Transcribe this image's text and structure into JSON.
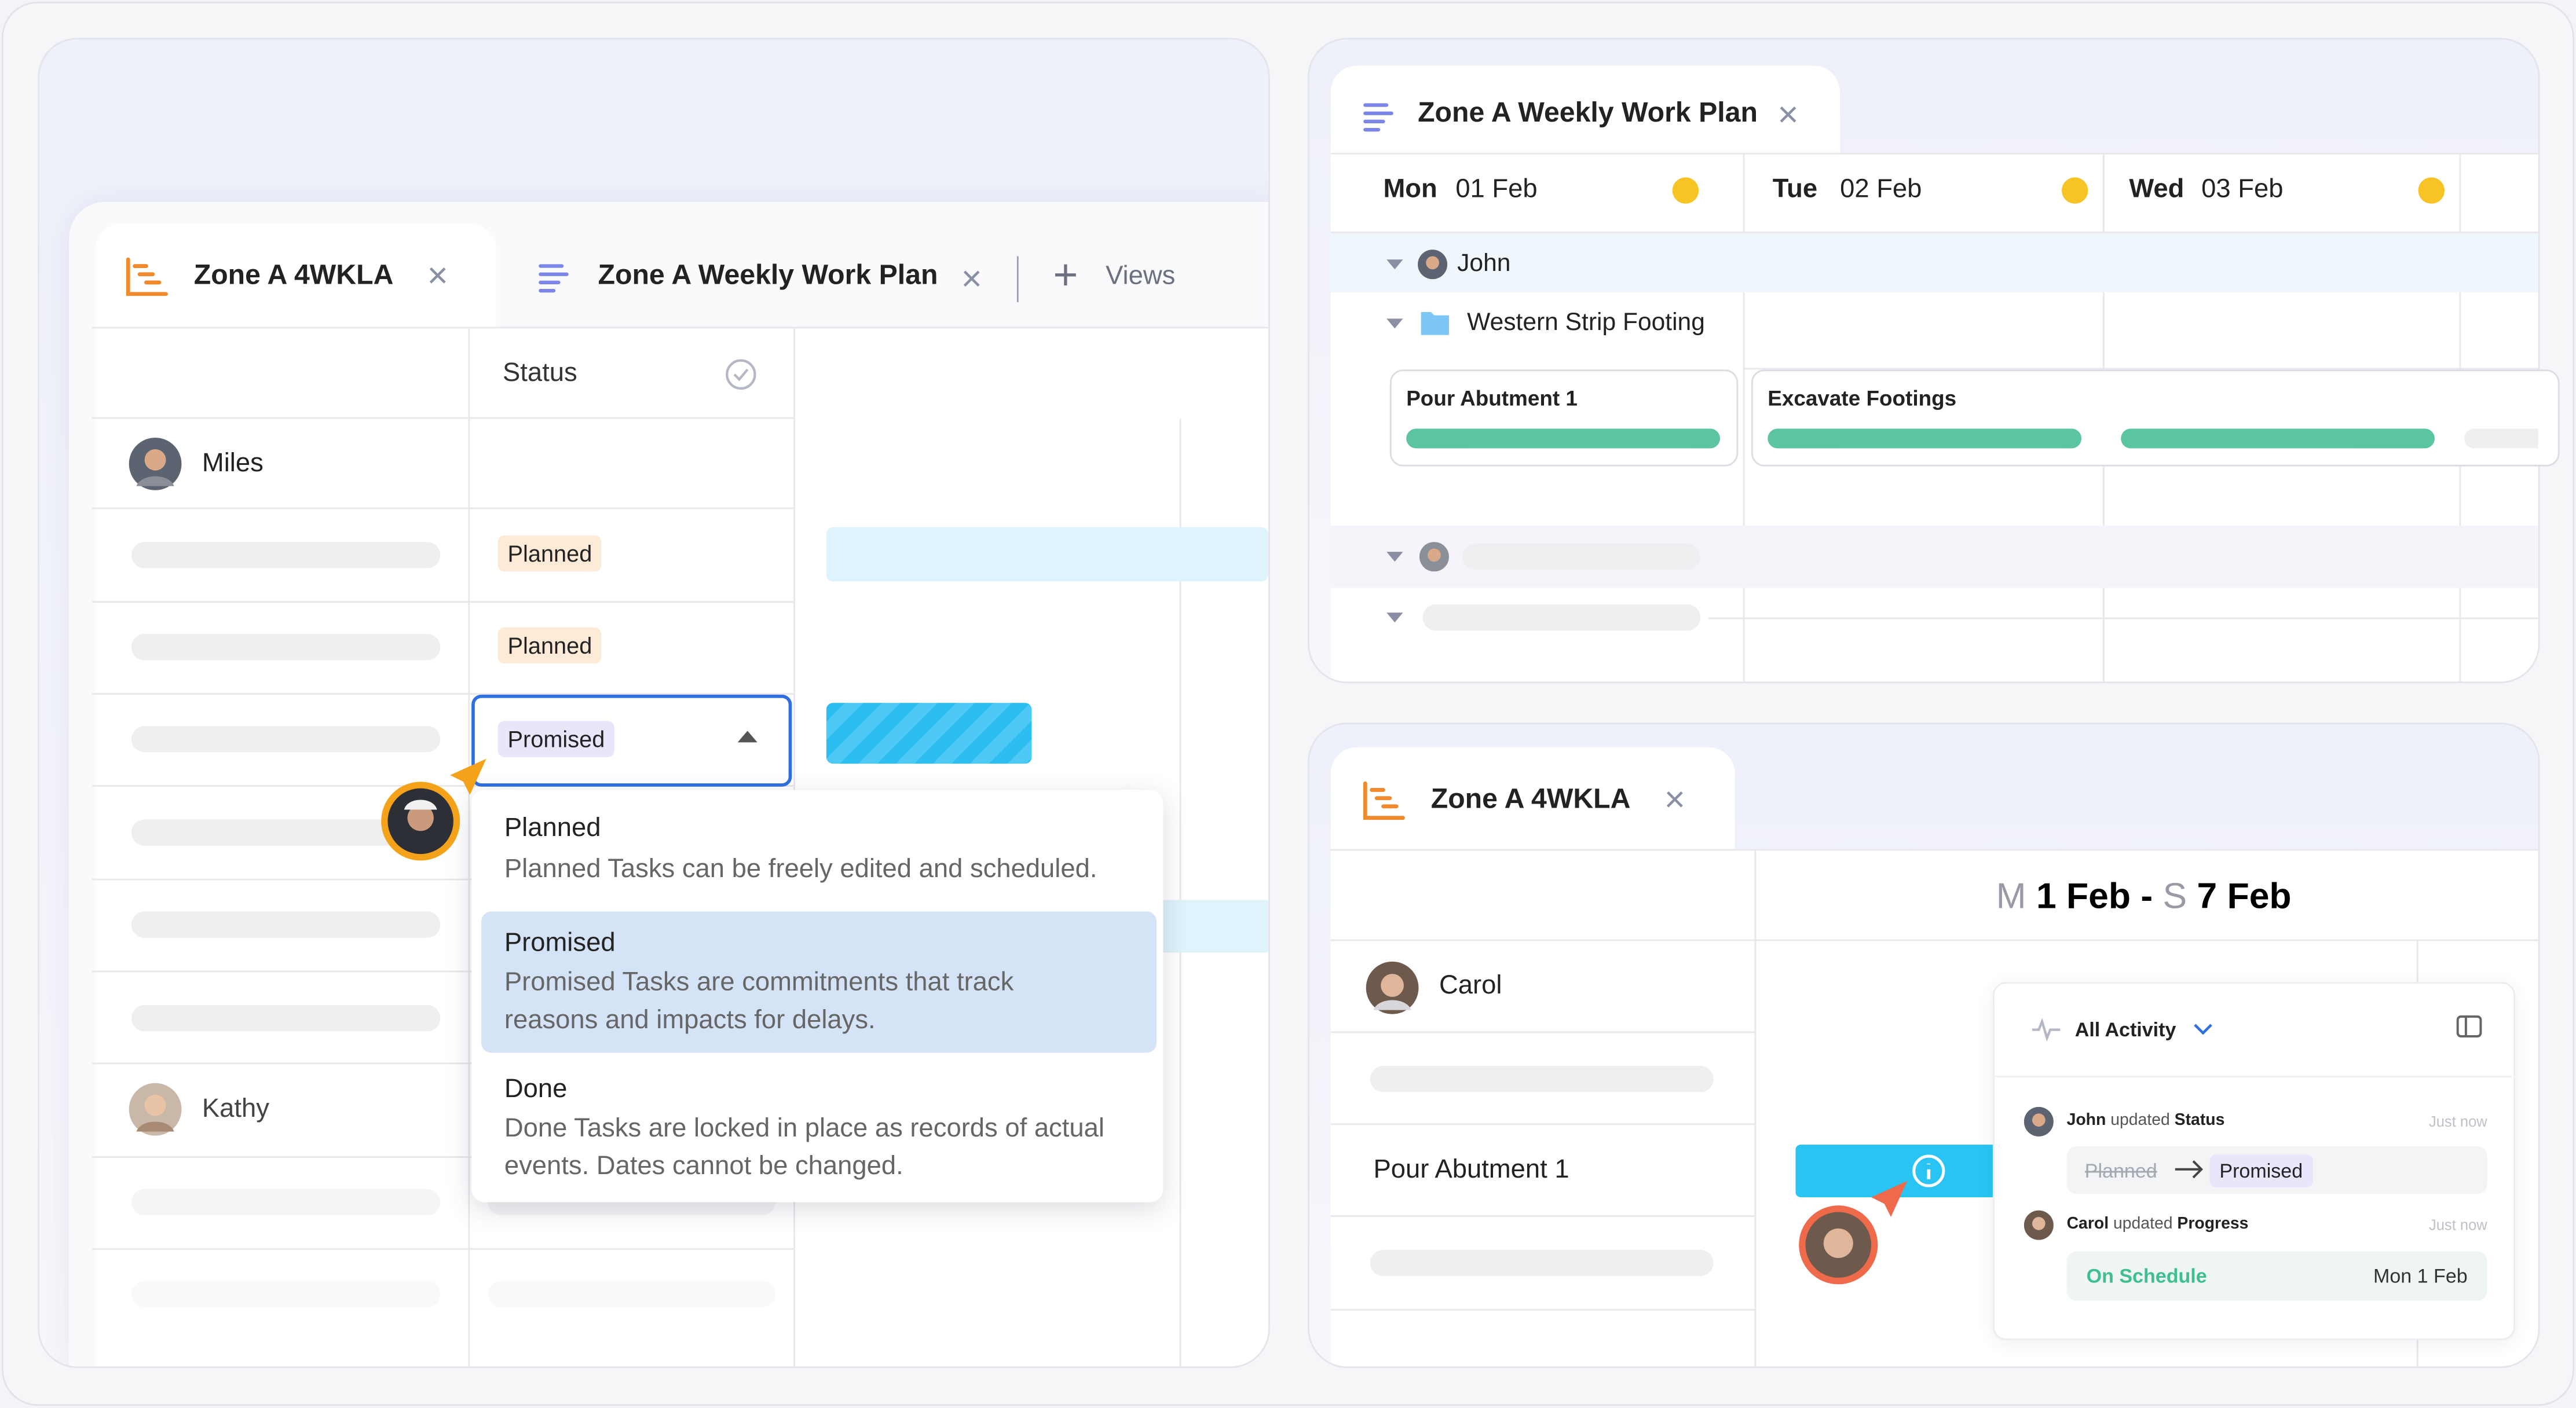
{
  "left_panel": {
    "tabs": [
      {
        "label": "Zone A 4WKLA"
      },
      {
        "label": "Zone A Weekly Work Plan"
      }
    ],
    "views_button": "Views",
    "status_header": "Status",
    "rows": [
      {
        "name": "Miles"
      },
      {
        "status": "Planned"
      },
      {
        "status": "Planned"
      },
      {
        "status": "Promised"
      },
      {
        "name": "Kathy"
      }
    ],
    "dropdown": [
      {
        "title": "Planned",
        "description": "Planned Tasks can be freely edited and scheduled."
      },
      {
        "title": "Promised",
        "description": "Promised Tasks are commitments that track reasons and impacts for delays."
      },
      {
        "title": "Done",
        "description": "Done Tasks are locked in place as records of actual events. Dates cannot be changed."
      }
    ]
  },
  "weekly_plan": {
    "tab": "Zone A Weekly Work Plan",
    "days": [
      {
        "weekday": "Mon",
        "date": "01 Feb"
      },
      {
        "weekday": "Tue",
        "date": "02 Feb"
      },
      {
        "weekday": "Wed",
        "date": "03 Feb"
      }
    ],
    "person": "John",
    "group": "Western Strip Footing",
    "tasks": [
      "Pour Abutment 1",
      "Excavate Footings"
    ]
  },
  "schedule": {
    "tab": "Zone A 4WKLA",
    "range": {
      "start_prefix": "M",
      "start": "1 Feb",
      "separator": "-",
      "end_prefix": "S",
      "end": "7 Feb"
    },
    "person": "Carol",
    "task": "Pour Abutment 1",
    "activity": {
      "filter": "All Activity",
      "events": [
        {
          "user": "John",
          "verb": "updated",
          "field": "Status",
          "time": "Just now",
          "from": "Planned",
          "to": "Promised"
        },
        {
          "user": "Carol",
          "verb": "updated",
          "field": "Progress",
          "time": "Just now",
          "status": "On Schedule",
          "date": "Mon 1 Feb"
        }
      ]
    }
  }
}
